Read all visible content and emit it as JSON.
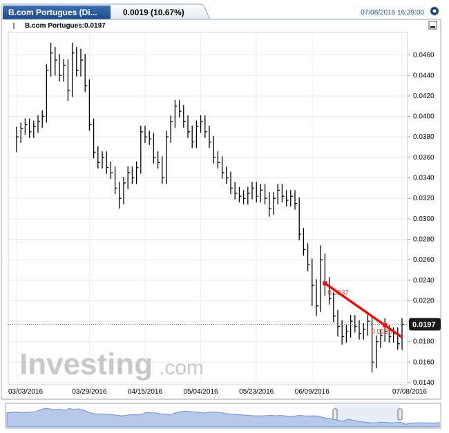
{
  "chart_data": {
    "type": "ohlc",
    "title": "B.com Portugues (Di...",
    "change": "0.0019 (10.67%)",
    "timestamp": "07/08/2016 16:39:00",
    "legend_label": "B.com Portugues:0.0197",
    "watermark": "Investing",
    "watermark_suffix": ".com",
    "categories": [
      "03/03/2016",
      null,
      null,
      null,
      null,
      null,
      null,
      null,
      null,
      null,
      null,
      null,
      null,
      null,
      null,
      null,
      null,
      "03/29/2016",
      null,
      null,
      null,
      null,
      null,
      null,
      null,
      null,
      null,
      null,
      null,
      null,
      "04/15/2016",
      null,
      null,
      null,
      null,
      null,
      null,
      null,
      null,
      null,
      null,
      null,
      null,
      "05/04/2016",
      null,
      null,
      null,
      null,
      null,
      null,
      null,
      null,
      null,
      null,
      null,
      null,
      "05/23/2016",
      null,
      null,
      null,
      null,
      null,
      null,
      null,
      null,
      null,
      null,
      null,
      null,
      "06/09/2016",
      null,
      null,
      null,
      null,
      null,
      null,
      null,
      null,
      null,
      null,
      null,
      null,
      null,
      null,
      null,
      null,
      null,
      null,
      null,
      null,
      "07/08/2016"
    ],
    "series": [
      {
        "name": "B.com Portugues",
        "color": "#000000",
        "high": [
          0.039,
          0.0394,
          0.0398,
          0.0398,
          0.0396,
          0.0401,
          0.0406,
          0.0451,
          0.0472,
          0.0468,
          0.0461,
          0.0456,
          0.0456,
          0.0472,
          0.0468,
          0.0466,
          0.0461,
          0.0436,
          0.0398,
          0.0371,
          0.0366,
          0.0366,
          0.0356,
          0.0351,
          0.0336,
          0.0341,
          0.0351,
          0.0351,
          0.0356,
          0.0391,
          0.0391,
          0.0386,
          0.0384,
          0.0366,
          0.0361,
          0.0386,
          0.0401,
          0.0416,
          0.0416,
          0.0411,
          0.0401,
          0.0391,
          0.0396,
          0.0401,
          0.0401,
          0.0391,
          0.0381,
          0.0366,
          0.0361,
          0.0351,
          0.0346,
          0.0336,
          0.0331,
          0.0328,
          0.0331,
          0.0336,
          0.0336,
          0.0334,
          0.0334,
          0.0326,
          0.0326,
          0.0334,
          0.0334,
          0.0328,
          0.0328,
          0.0328,
          0.0321,
          0.0291,
          0.0276,
          0.0261,
          0.0241,
          0.0274,
          0.0266,
          0.0243,
          0.0228,
          0.0211,
          0.0201,
          0.0196,
          0.0206,
          0.0206,
          0.0201,
          0.0198,
          0.0208,
          0.0206,
          0.0186,
          0.0192,
          0.0203,
          0.0196,
          0.0194,
          0.0194,
          0.0203
        ],
        "low": [
          0.0365,
          0.0374,
          0.0382,
          0.0379,
          0.0379,
          0.0384,
          0.0389,
          0.0394,
          0.0439,
          0.044,
          0.0434,
          0.0434,
          0.0415,
          0.0419,
          0.0439,
          0.0439,
          0.0424,
          0.0386,
          0.0359,
          0.0349,
          0.0349,
          0.0344,
          0.0339,
          0.0324,
          0.031,
          0.0314,
          0.0329,
          0.0334,
          0.0334,
          0.0344,
          0.0374,
          0.0372,
          0.0354,
          0.0349,
          0.0334,
          0.0334,
          0.0374,
          0.0389,
          0.0399,
          0.0389,
          0.0379,
          0.0369,
          0.0369,
          0.0384,
          0.0379,
          0.0369,
          0.0354,
          0.0349,
          0.0339,
          0.0334,
          0.0324,
          0.0319,
          0.0316,
          0.0314,
          0.0314,
          0.0319,
          0.0316,
          0.0316,
          0.0314,
          0.0302,
          0.0304,
          0.0314,
          0.0316,
          0.0312,
          0.0312,
          0.0309,
          0.0279,
          0.0264,
          0.0249,
          0.0215,
          0.0205,
          0.0209,
          0.0225,
          0.0216,
          0.0199,
          0.0185,
          0.0177,
          0.0179,
          0.0184,
          0.0189,
          0.0182,
          0.0182,
          0.0186,
          0.015,
          0.0154,
          0.0174,
          0.018,
          0.0179,
          0.0179,
          0.0172,
          0.0172
        ],
        "close": [
          0.038,
          0.0388,
          0.0392,
          0.0385,
          0.039,
          0.0395,
          0.04,
          0.0445,
          0.0462,
          0.0455,
          0.044,
          0.045,
          0.0425,
          0.0462,
          0.0445,
          0.0455,
          0.043,
          0.0392,
          0.0365,
          0.0355,
          0.036,
          0.035,
          0.0345,
          0.033,
          0.032,
          0.0335,
          0.0345,
          0.034,
          0.035,
          0.0385,
          0.038,
          0.0378,
          0.036,
          0.0355,
          0.034,
          0.038,
          0.0395,
          0.041,
          0.0405,
          0.0395,
          0.0385,
          0.0375,
          0.039,
          0.0395,
          0.0385,
          0.0375,
          0.036,
          0.0355,
          0.0345,
          0.034,
          0.033,
          0.0325,
          0.0322,
          0.032,
          0.0325,
          0.033,
          0.0322,
          0.0328,
          0.032,
          0.031,
          0.032,
          0.0328,
          0.0322,
          0.0318,
          0.0322,
          0.0315,
          0.0285,
          0.027,
          0.0255,
          0.0235,
          0.0215,
          0.026,
          0.0237,
          0.0222,
          0.0205,
          0.0195,
          0.0185,
          0.019,
          0.02,
          0.0195,
          0.0188,
          0.0192,
          0.02,
          0.016,
          0.018,
          0.0186,
          0.019,
          0.0185,
          0.0188,
          0.0178,
          0.0197
        ]
      }
    ],
    "trendline": {
      "color": "#e8100c",
      "x_index": [
        72,
        86
      ],
      "values": [
        0.0237,
        0.0196
      ],
      "value_labels": [
        "0.0237",
        "0.0196"
      ]
    },
    "last_price": {
      "value": 0.0197,
      "label": "0.0197"
    },
    "ylim": [
      0.0138,
      0.0482
    ],
    "yticks": [
      {
        "value": 0.014,
        "label": "0.0140"
      },
      {
        "value": 0.016,
        "label": "0.0160"
      },
      {
        "value": 0.018,
        "label": "0.0180"
      },
      {
        "value": 0.02,
        "label": "0.0200"
      },
      {
        "value": 0.022,
        "label": "0.0220"
      },
      {
        "value": 0.024,
        "label": "0.0240"
      },
      {
        "value": 0.026,
        "label": "0.0260"
      },
      {
        "value": 0.028,
        "label": "0.0280"
      },
      {
        "value": 0.03,
        "label": "0.0300"
      },
      {
        "value": 0.032,
        "label": "0.0320"
      },
      {
        "value": 0.034,
        "label": "0.0340"
      },
      {
        "value": 0.036,
        "label": "0.0360"
      },
      {
        "value": 0.038,
        "label": "0.0380"
      },
      {
        "value": 0.04,
        "label": "0.0400"
      },
      {
        "value": 0.042,
        "label": "0.0420"
      },
      {
        "value": 0.044,
        "label": "0.0440"
      },
      {
        "value": 0.046,
        "label": "0.0460"
      }
    ],
    "grid": true
  }
}
